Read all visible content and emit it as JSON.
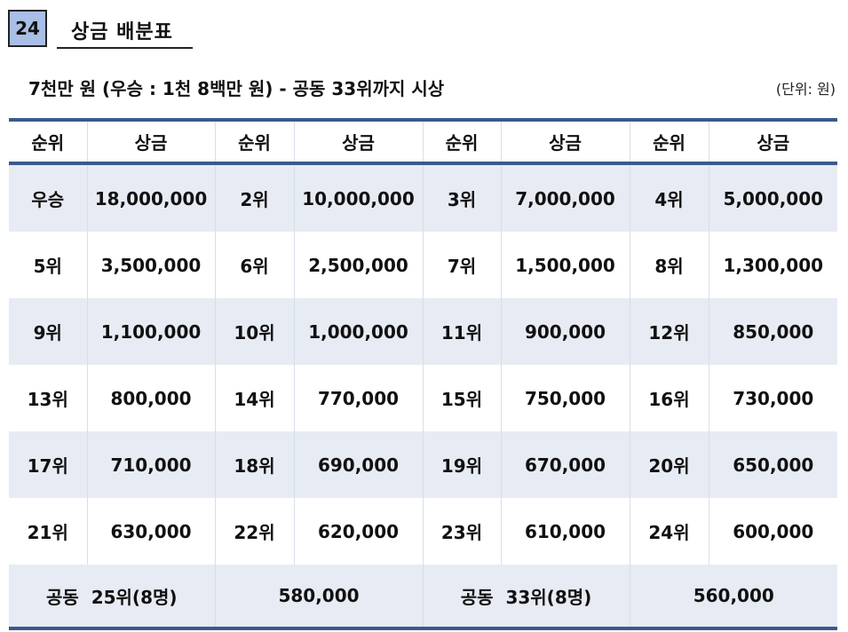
{
  "page_number": "24",
  "title": "상금 배분표",
  "subtitle": "7천만 원 (우승 : 1천 8백만 원) - 공동 33위까지 시상",
  "unit_note": "(단위: 원)",
  "table": {
    "headers": [
      "순위",
      "상금",
      "순위",
      "상금",
      "순위",
      "상금",
      "순위",
      "상금"
    ],
    "rows": [
      [
        "우승",
        "18,000,000",
        "2위",
        "10,000,000",
        "3위",
        "7,000,000",
        "4위",
        "5,000,000"
      ],
      [
        "5위",
        "3,500,000",
        "6위",
        "2,500,000",
        "7위",
        "1,500,000",
        "8위",
        "1,300,000"
      ],
      [
        "9위",
        "1,100,000",
        "10위",
        "1,000,000",
        "11위",
        "900,000",
        "12위",
        "850,000"
      ],
      [
        "13위",
        "800,000",
        "14위",
        "770,000",
        "15위",
        "750,000",
        "16위",
        "730,000"
      ],
      [
        "17위",
        "710,000",
        "18위",
        "690,000",
        "19위",
        "670,000",
        "20위",
        "650,000"
      ],
      [
        "21위",
        "630,000",
        "22위",
        "620,000",
        "23위",
        "610,000",
        "24위",
        "600,000"
      ]
    ],
    "last_row": [
      "공동  25위(8명)",
      "580,000",
      "공동  33위(8명)",
      "560,000"
    ]
  }
}
